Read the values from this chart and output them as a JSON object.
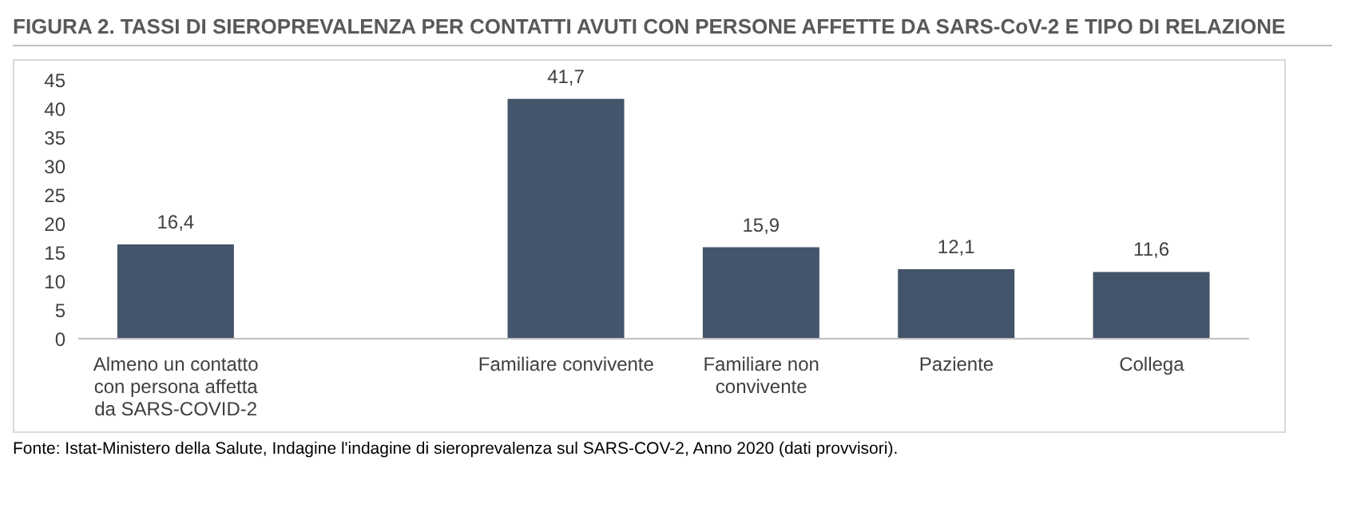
{
  "chart_data": {
    "type": "bar",
    "title": "FIGURA 2. TASSI DI SIEROPREVALENZA PER CONTATTI AVUTI CON PERSONE AFFETTE DA SARS-CoV-2 E TIPO DI RELAZIONE",
    "categories": [
      "Almeno un contatto con persona affetta da SARS-COVID-2",
      null,
      "Familiare convivente",
      "Familiare non convivente",
      "Paziente",
      "Collega"
    ],
    "values": [
      16.4,
      null,
      41.7,
      15.9,
      12.1,
      11.6
    ],
    "value_labels": [
      "16,4",
      null,
      "41,7",
      "15,9",
      "12,1",
      "11,6"
    ],
    "color": "#44546a",
    "ylim": [
      0,
      45
    ],
    "yticks": [
      0,
      5,
      10,
      15,
      20,
      25,
      30,
      35,
      40,
      45
    ],
    "grid": false,
    "legend": false,
    "annotations": [
      "Fonte: Istat-Ministero della Salute, Indagine l'indagine di sieroprevalenza sul SARS-COV-2, Anno 2020 (dati provvisori)."
    ]
  }
}
